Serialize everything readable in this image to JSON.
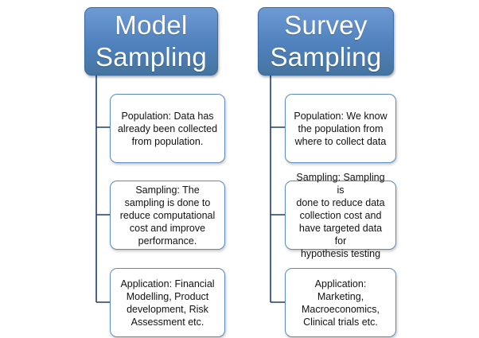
{
  "columns": [
    {
      "header": {
        "line1": "Model",
        "line2": "Sampling"
      },
      "items": [
        {
          "text": "Population: Data has\nalready been collected\nfrom population."
        },
        {
          "text": "Sampling: The\nsampling is done to\nreduce computational\ncost and improve\nperformance."
        },
        {
          "text": "Application: Financial\nModelling, Product\ndevelopment, Risk\nAssessment etc."
        }
      ]
    },
    {
      "header": {
        "line1": "Survey",
        "line2": "Sampling"
      },
      "items": [
        {
          "text": "Population:  We know\nthe population from\nwhere to collect data"
        },
        {
          "text": "Sampling: Sampling is\ndone to reduce data\ncollection cost and\nhave targeted data for\nhypothesis testing"
        },
        {
          "text": "Application:\nMarketing,\nMacroeconomics,\nClinical trials etc."
        }
      ]
    }
  ],
  "colors": {
    "header_fill": "#4f81bd",
    "connector": "#1f3f6e",
    "box_border": "#5b8bc2"
  }
}
